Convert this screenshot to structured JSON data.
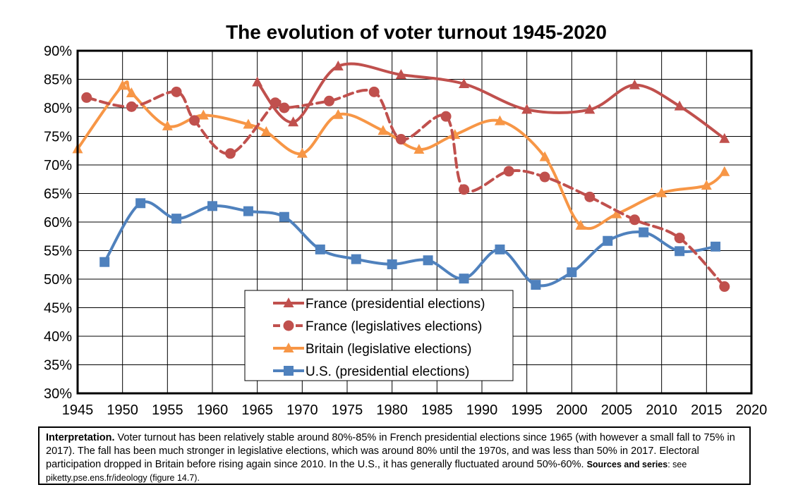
{
  "chart_data": {
    "type": "line",
    "title": "The evolution of voter turnout 1945-2020",
    "xlabel": "",
    "ylabel": "",
    "xlim": [
      1945,
      2020
    ],
    "ylim": [
      30,
      90
    ],
    "x_ticks": [
      "1945",
      "1950",
      "1955",
      "1960",
      "1965",
      "1970",
      "1975",
      "1980",
      "1985",
      "1990",
      "1995",
      "2000",
      "2005",
      "2010",
      "2015",
      "2020"
    ],
    "y_ticks": [
      "30%",
      "35%",
      "40%",
      "45%",
      "50%",
      "55%",
      "60%",
      "65%",
      "70%",
      "75%",
      "80%",
      "85%",
      "90%"
    ],
    "grid": true,
    "legend_position": "bottom-center",
    "series": [
      {
        "name": "France (presidential elections)",
        "color": "#c0504d",
        "marker": "triangle",
        "dashed": false,
        "points": [
          [
            1965,
            84.5
          ],
          [
            1969,
            77.5
          ],
          [
            1974,
            87.3
          ],
          [
            1981,
            85.8
          ],
          [
            1988,
            84.2
          ],
          [
            1995,
            79.7
          ],
          [
            2002,
            79.7
          ],
          [
            2007,
            84.0
          ],
          [
            2012,
            80.3
          ],
          [
            2017,
            74.6
          ]
        ]
      },
      {
        "name": "France (legislatives elections)",
        "color": "#c0504d",
        "marker": "circle",
        "dashed": true,
        "points": [
          [
            1946,
            81.8
          ],
          [
            1951,
            80.2
          ],
          [
            1956,
            82.8
          ],
          [
            1958,
            77.8
          ],
          [
            1962,
            72.0
          ],
          [
            1967,
            80.9
          ],
          [
            1968,
            80.0
          ],
          [
            1973,
            81.2
          ],
          [
            1978,
            82.8
          ],
          [
            1981,
            74.5
          ],
          [
            1986,
            78.5
          ],
          [
            1988,
            65.7
          ],
          [
            1993,
            68.9
          ],
          [
            1997,
            67.9
          ],
          [
            2002,
            64.4
          ],
          [
            2007,
            60.4
          ],
          [
            2012,
            57.2
          ],
          [
            2017,
            48.7
          ]
        ]
      },
      {
        "name": "Britain (legislative elections)",
        "color": "#f79646",
        "marker": "triangle",
        "dashed": false,
        "points": [
          [
            1945,
            72.8
          ],
          [
            1950,
            83.9
          ],
          [
            1951,
            82.6
          ],
          [
            1955,
            76.8
          ],
          [
            1959,
            78.7
          ],
          [
            1964,
            77.1
          ],
          [
            1966,
            75.8
          ],
          [
            1970,
            72.0
          ],
          [
            1974,
            78.8
          ],
          [
            1979,
            76.0
          ],
          [
            1983,
            72.7
          ],
          [
            1987,
            75.3
          ],
          [
            1992,
            77.7
          ],
          [
            1997,
            71.4
          ],
          [
            2001,
            59.4
          ],
          [
            2005,
            61.4
          ],
          [
            2010,
            65.1
          ],
          [
            2015,
            66.4
          ],
          [
            2017,
            68.8
          ]
        ]
      },
      {
        "name": "U.S. (presidential elections)",
        "color": "#4f81bd",
        "marker": "square",
        "dashed": false,
        "points": [
          [
            1948,
            53.0
          ],
          [
            1952,
            63.3
          ],
          [
            1956,
            60.6
          ],
          [
            1960,
            62.8
          ],
          [
            1964,
            61.9
          ],
          [
            1968,
            60.9
          ],
          [
            1972,
            55.2
          ],
          [
            1976,
            53.5
          ],
          [
            1980,
            52.6
          ],
          [
            1984,
            53.3
          ],
          [
            1988,
            50.1
          ],
          [
            1992,
            55.2
          ],
          [
            1996,
            49.0
          ],
          [
            2000,
            51.2
          ],
          [
            2004,
            56.7
          ],
          [
            2008,
            58.2
          ],
          [
            2012,
            54.9
          ],
          [
            2016,
            55.7
          ]
        ]
      }
    ]
  },
  "note": {
    "heading": "Interpretation.",
    "text": " Voter turnout has been relatively stable around 80%-85% in French presidential elections since 1965 (with however a small fall to 75% in 2017). The fall has been much stronger in legislative elections, which was around 80% until the 1970s, and was less than 50% in 2017. Electoral participation dropped in Britain before rising again since 2010. In the U.S., it has generally fluctuated around 50%-60%. ",
    "sources_label": "Sources and series",
    "sources_text": ": see piketty.pse.ens.fr/ideology (figure 14.7)."
  }
}
